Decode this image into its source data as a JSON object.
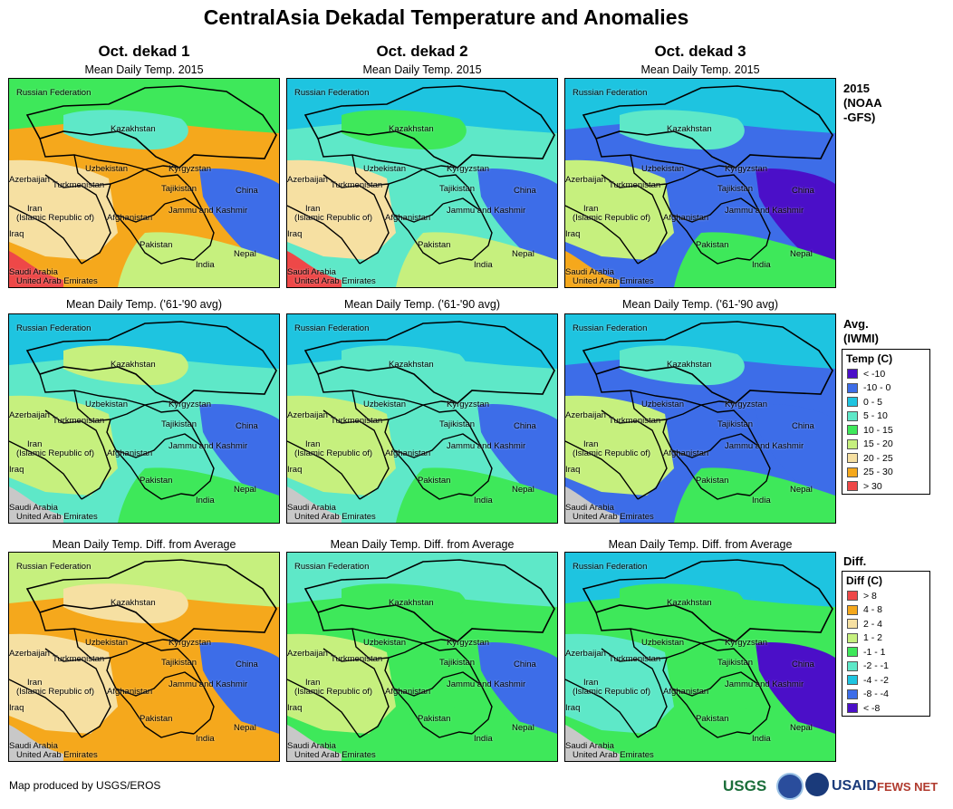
{
  "title": "CentralAsia Dekadal Temperature and Anomalies",
  "columns": [
    "Oct. dekad 1",
    "Oct. dekad 2",
    "Oct. dekad 3"
  ],
  "rows": [
    {
      "panel_title": "Mean Daily Temp. 2015",
      "side_label": "2015\n(NOAA\n-GFS)"
    },
    {
      "panel_title": "Mean Daily Temp. ('61-'90 avg)",
      "side_label": "Avg.\n(IWMI)"
    },
    {
      "panel_title": "Mean Daily Temp. Diff. from Average",
      "side_label": "Diff."
    }
  ],
  "map_labels": [
    "Russian Federation",
    "Kazakhstan",
    "Uzbekistan",
    "Kyrgyzstan",
    "Azerbaijan",
    "Turkmenistan",
    "Tajikistan",
    "China",
    "Iran",
    "(Islamic Republic of)",
    "Afghanistan",
    "Jammu and Kashmir",
    "Iraq",
    "Pakistan",
    "Nepal",
    "India",
    "Saudi Arabia",
    "United Arab Emirates"
  ],
  "legend_temp": {
    "title": "Temp (C)",
    "items": [
      {
        "label": "< -10",
        "color": "#4b0fc8"
      },
      {
        "label": "-10 - 0",
        "color": "#3d6de8"
      },
      {
        "label": "0 - 5",
        "color": "#1ec4e0"
      },
      {
        "label": "5 - 10",
        "color": "#5ee8c8"
      },
      {
        "label": "10 - 15",
        "color": "#3ee85a"
      },
      {
        "label": "15 - 20",
        "color": "#c6f07e"
      },
      {
        "label": "20 - 25",
        "color": "#f6e0a2"
      },
      {
        "label": "25 - 30",
        "color": "#f5a81c"
      },
      {
        "label": "> 30",
        "color": "#ee4848"
      }
    ]
  },
  "legend_diff": {
    "title": "Diff (C)",
    "items": [
      {
        "label": "> 8",
        "color": "#ee4848"
      },
      {
        "label": "4 - 8",
        "color": "#f5a81c"
      },
      {
        "label": "2 - 4",
        "color": "#f6e0a2"
      },
      {
        "label": "1 - 2",
        "color": "#c6f07e"
      },
      {
        "label": "-1 - 1",
        "color": "#3ee85a"
      },
      {
        "label": "-2 - -1",
        "color": "#5ee8c8"
      },
      {
        "label": "-4 - -2",
        "color": "#1ec4e0"
      },
      {
        "label": "-8 - -4",
        "color": "#3d6de8"
      },
      {
        "label": "< -8",
        "color": "#4b0fc8"
      }
    ]
  },
  "footer": "Map produced by USGS/EROS",
  "logos": {
    "usgs": "USGS",
    "usaid": "USAID",
    "fews": "FEWS NET"
  },
  "panel_colors": [
    [
      "#f5a81c",
      "#f6e0a2",
      "#c6f07e",
      "#3ee85a",
      "#3d6de8",
      "#ee4848",
      "#5ee8c8"
    ],
    [
      "#5ee8c8",
      "#f6e0a2",
      "#c6f07e",
      "#1ec4e0",
      "#3d6de8",
      "#ee4848",
      "#3ee85a"
    ],
    [
      "#3d6de8",
      "#c6f07e",
      "#3ee85a",
      "#1ec4e0",
      "#4b0fc8",
      "#f5a81c",
      "#5ee8c8"
    ],
    [
      "#5ee8c8",
      "#c6f07e",
      "#3ee85a",
      "#1ec4e0",
      "#3d6de8",
      "#f5a81c",
      "#c6f07e"
    ],
    [
      "#5ee8c8",
      "#c6f07e",
      "#3ee85a",
      "#1ec4e0",
      "#3d6de8",
      "#f5a81c",
      "#5ee8c8"
    ],
    [
      "#3d6de8",
      "#c6f07e",
      "#3ee85a",
      "#1ec4e0",
      "#3d6de8",
      "#f6e0a2",
      "#5ee8c8"
    ],
    [
      "#f5a81c",
      "#f6e0a2",
      "#f5a81c",
      "#c6f07e",
      "#3d6de8",
      "#f5a81c",
      "#f6e0a2"
    ],
    [
      "#3ee85a",
      "#c6f07e",
      "#3ee85a",
      "#5ee8c8",
      "#3d6de8",
      "#f6e0a2",
      "#3ee85a"
    ],
    [
      "#3ee85a",
      "#5ee8c8",
      "#3ee85a",
      "#1ec4e0",
      "#4b0fc8",
      "#c6f07e",
      "#3ee85a"
    ]
  ]
}
